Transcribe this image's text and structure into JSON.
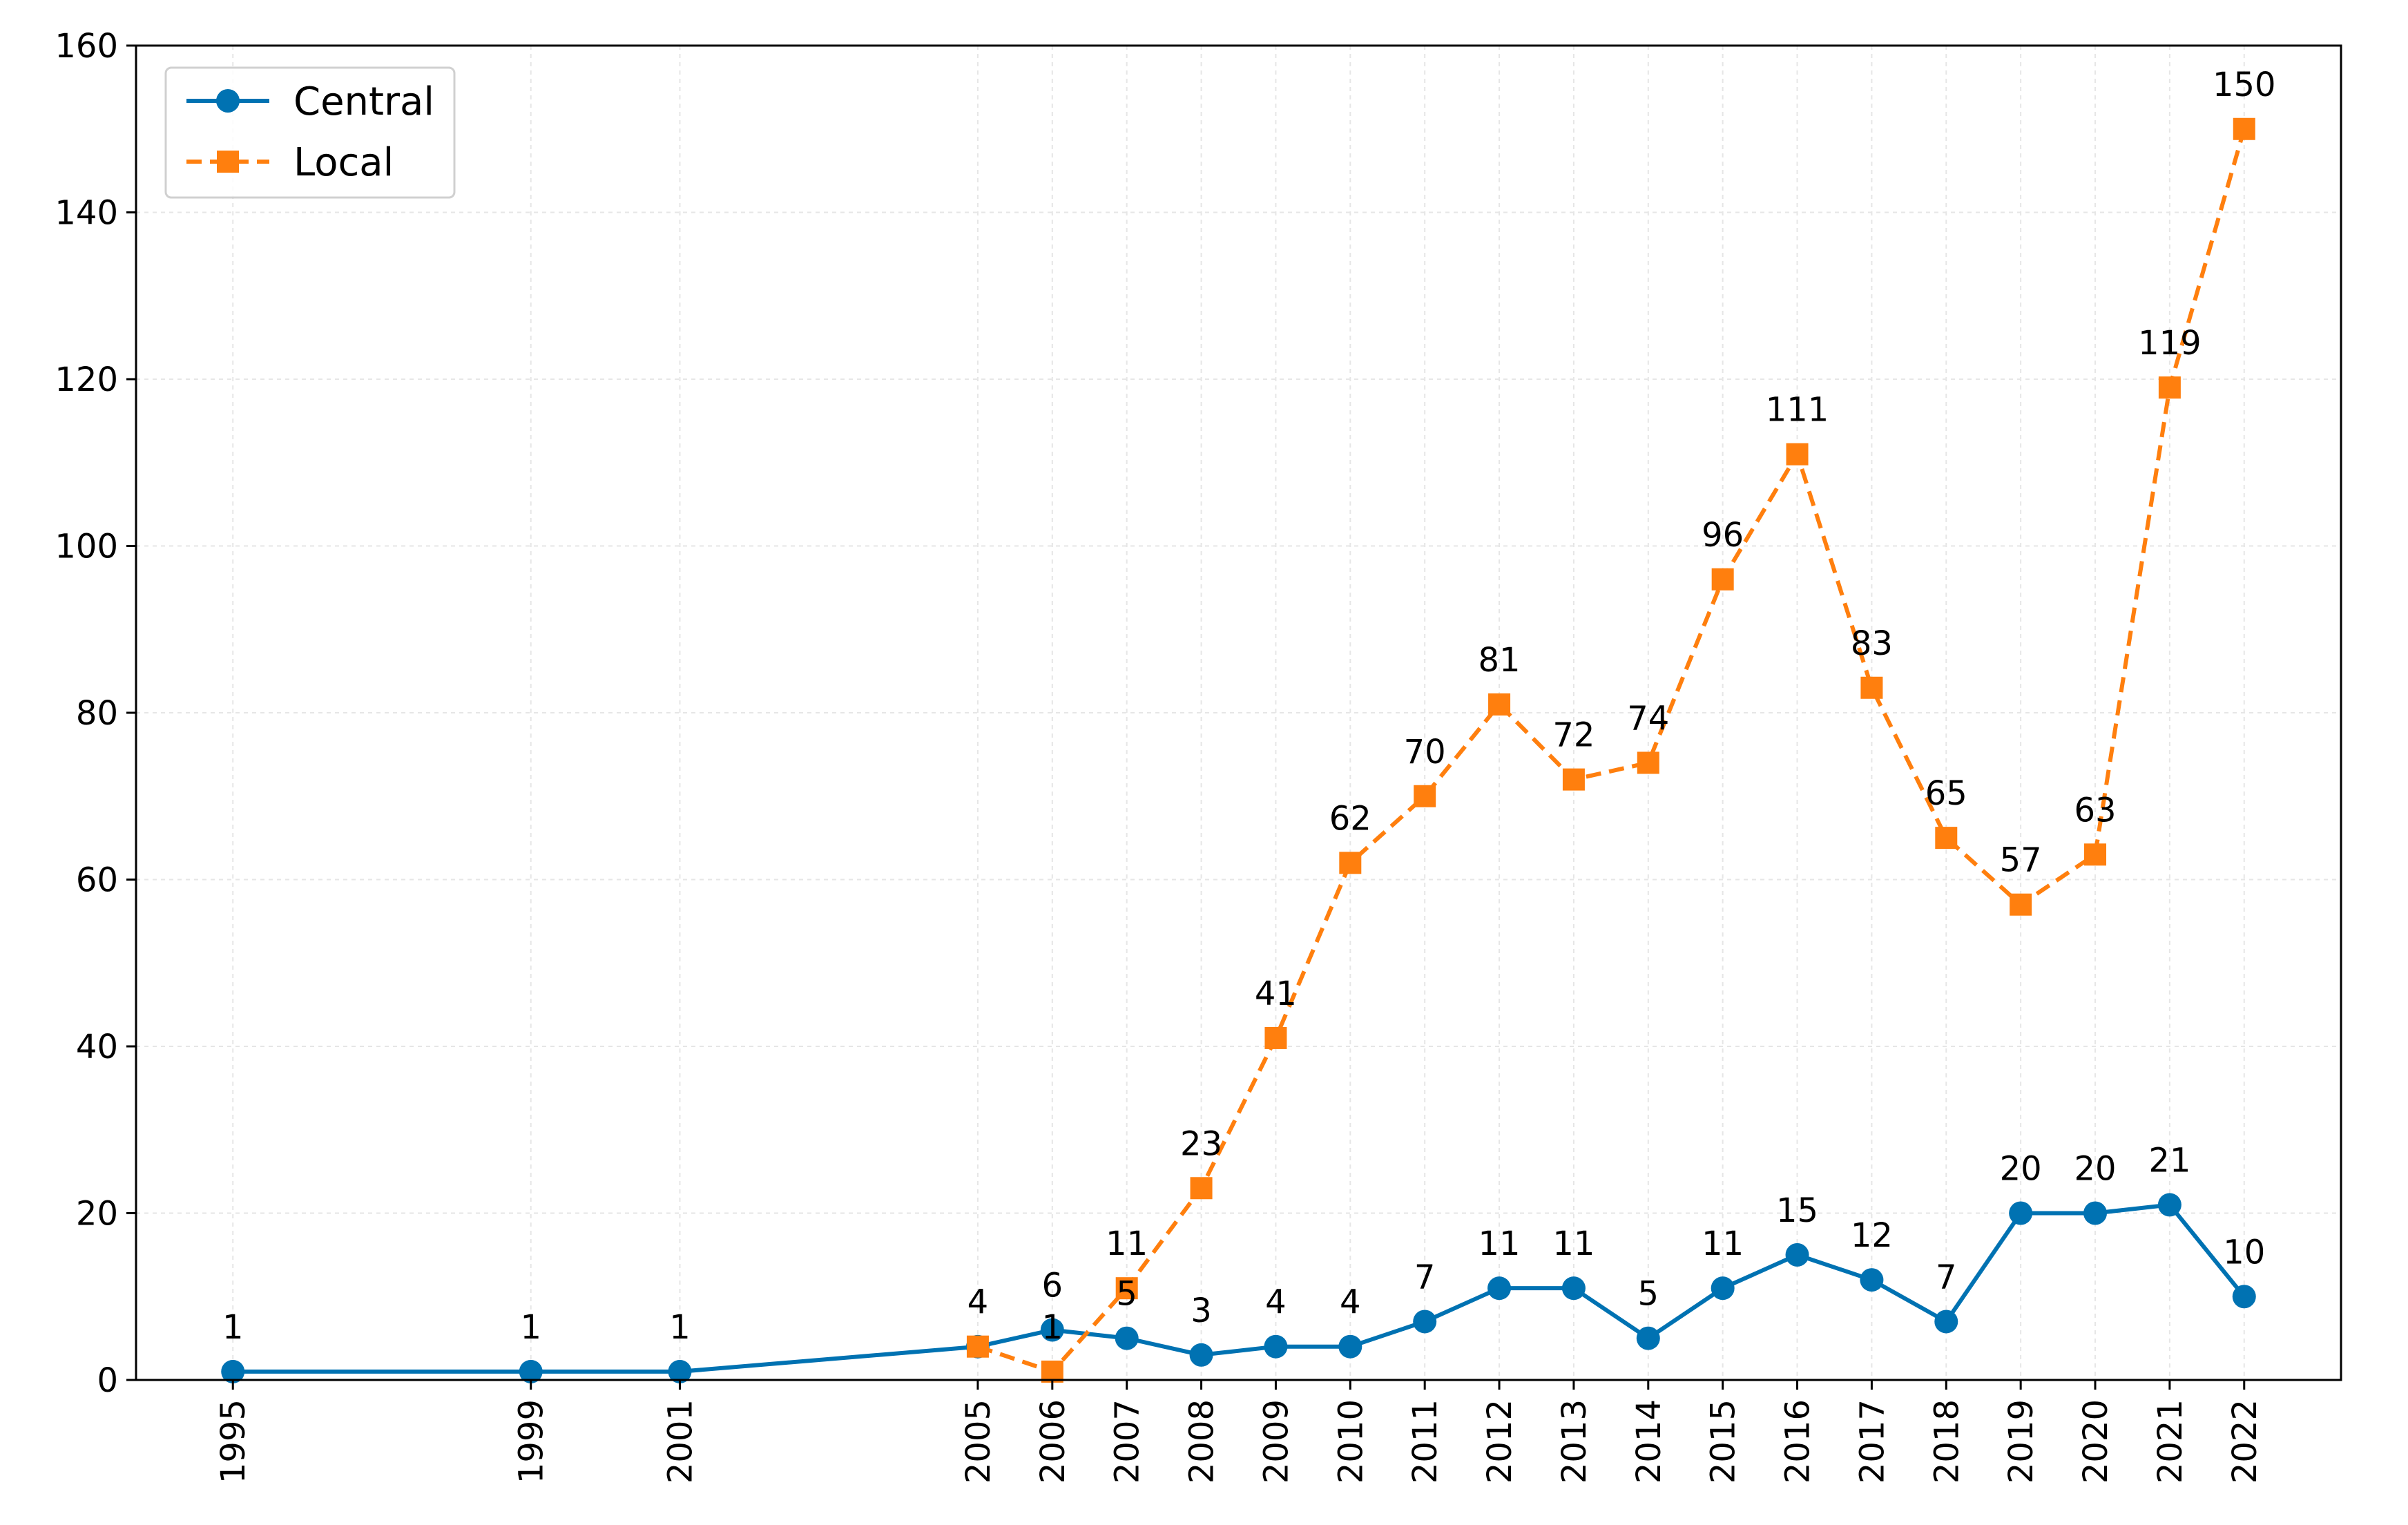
{
  "chart_data": {
    "type": "line",
    "title": "",
    "xlabel": "",
    "ylabel": "",
    "x": [
      1995,
      1999,
      2001,
      2005,
      2006,
      2007,
      2008,
      2009,
      2010,
      2011,
      2012,
      2013,
      2014,
      2015,
      2016,
      2017,
      2018,
      2019,
      2020,
      2021,
      2022
    ],
    "x_tick_labels": [
      "1995",
      "1999",
      "2001",
      "2005",
      "2006",
      "2007",
      "2008",
      "2009",
      "2010",
      "2011",
      "2012",
      "2013",
      "2014",
      "2015",
      "2016",
      "2017",
      "2018",
      "2019",
      "2020",
      "2021",
      "2022"
    ],
    "ylim": [
      0,
      160
    ],
    "y_ticks": [
      0,
      20,
      40,
      60,
      80,
      100,
      120,
      140,
      160
    ],
    "grid": true,
    "legend_position": "top-left",
    "series": [
      {
        "name": "Central",
        "color": "#0072B2",
        "marker": "circle",
        "line_style": "solid",
        "x": [
          1995,
          1999,
          2001,
          2005,
          2006,
          2007,
          2008,
          2009,
          2010,
          2011,
          2012,
          2013,
          2014,
          2015,
          2016,
          2017,
          2018,
          2019,
          2020,
          2021,
          2022
        ],
        "values": [
          1,
          1,
          1,
          4,
          6,
          5,
          3,
          4,
          4,
          7,
          11,
          11,
          5,
          11,
          15,
          12,
          7,
          20,
          20,
          21,
          10
        ]
      },
      {
        "name": "Local",
        "color": "#FF7F0E",
        "marker": "square",
        "line_style": "dashed",
        "x": [
          2005,
          2006,
          2007,
          2008,
          2009,
          2010,
          2011,
          2012,
          2013,
          2014,
          2015,
          2016,
          2017,
          2018,
          2019,
          2020,
          2021,
          2022
        ],
        "values": [
          4,
          1,
          11,
          23,
          41,
          62,
          70,
          81,
          72,
          74,
          96,
          111,
          83,
          65,
          57,
          63,
          119,
          150
        ]
      }
    ]
  }
}
